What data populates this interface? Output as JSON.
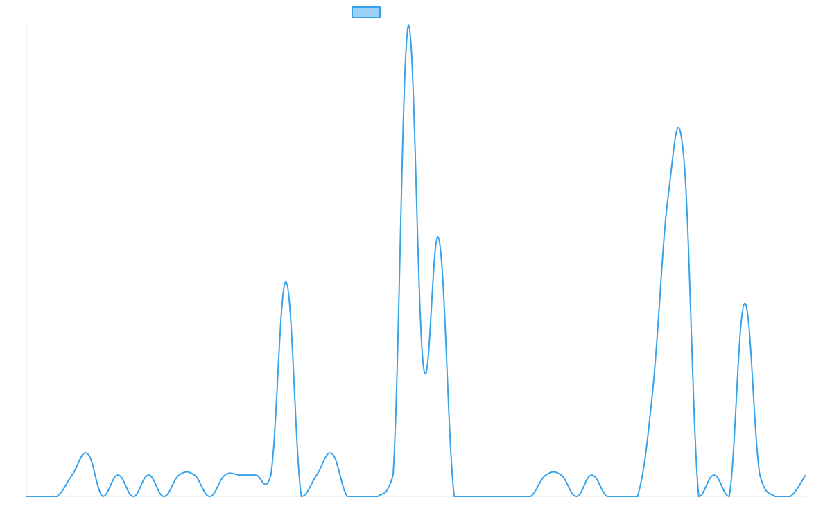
{
  "chart_data": {
    "type": "line",
    "categories": [
      null,
      null,
      null,
      null,
      null,
      null,
      null,
      null,
      null,
      null,
      null,
      null,
      null,
      null,
      null,
      null,
      null,
      null,
      null,
      null,
      null,
      null,
      null,
      null,
      null,
      null,
      null,
      null,
      null,
      null,
      null,
      null,
      null,
      null,
      null,
      null,
      null,
      null,
      null,
      null,
      null,
      null,
      null,
      null,
      null,
      null,
      null,
      null,
      null,
      null,
      null,
      null
    ],
    "series": [
      {
        "color": "#36a2eb",
        "values": [
          0,
          0,
          0,
          1,
          2,
          0,
          1,
          0,
          1,
          0,
          1,
          1,
          0,
          1,
          1,
          1,
          1,
          10,
          0,
          1,
          2,
          0,
          0,
          0,
          1,
          22,
          6,
          12,
          0,
          0,
          0,
          0,
          0,
          0,
          1,
          1,
          0,
          1,
          0,
          0,
          0,
          5,
          14,
          16,
          0,
          1,
          0,
          9,
          1,
          0,
          0,
          1
        ]
      }
    ],
    "ylim": [
      0,
      22
    ],
    "legend": "top"
  }
}
